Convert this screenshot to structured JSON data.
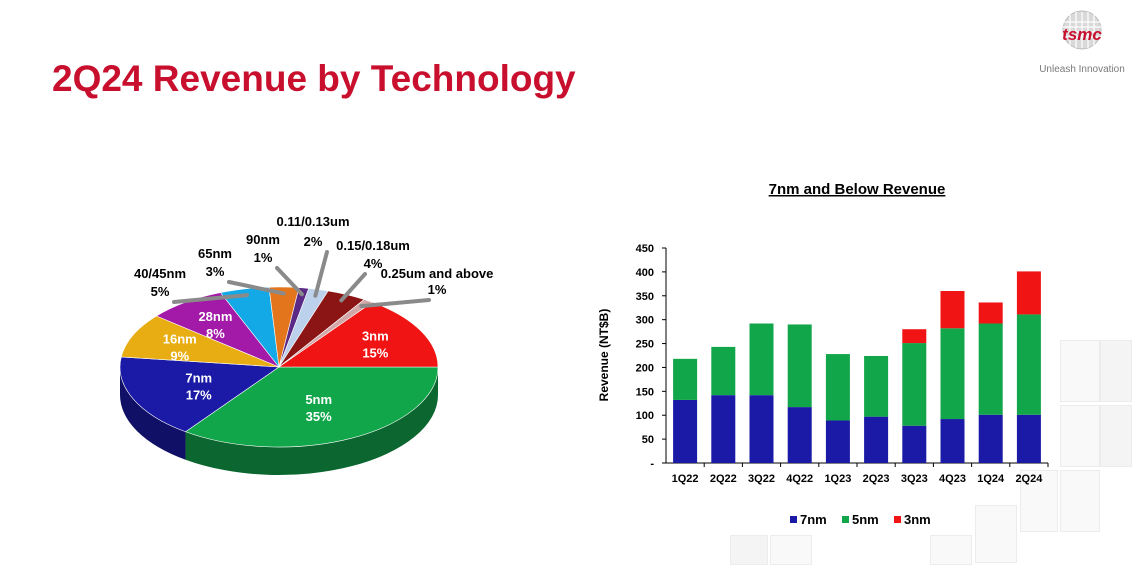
{
  "page": {
    "title": "2Q24 Revenue by Technology",
    "logo_text": "tsmc",
    "tagline": "Unleash Innovation"
  },
  "chart_data": [
    {
      "type": "pie",
      "title": "",
      "slices": [
        {
          "label": "5nm",
          "value": 35,
          "pct": "35%",
          "color": "#12a64b"
        },
        {
          "label": "7nm",
          "value": 17,
          "pct": "17%",
          "color": "#1a1aa6"
        },
        {
          "label": "16nm",
          "value": 9,
          "pct": "9%",
          "color": "#e8ad12"
        },
        {
          "label": "28nm",
          "value": 8,
          "pct": "8%",
          "color": "#a319a8"
        },
        {
          "label": "40/45nm",
          "value": 5,
          "pct": "5%",
          "color": "#13a8e6"
        },
        {
          "label": "65nm",
          "value": 3,
          "pct": "3%",
          "color": "#e3761c"
        },
        {
          "label": "90nm",
          "value": 1,
          "pct": "1%",
          "color": "#5a2a86"
        },
        {
          "label": "0.11/0.13um",
          "value": 2,
          "pct": "2%",
          "color": "#bcd2ec"
        },
        {
          "label": "0.15/0.18um",
          "value": 4,
          "pct": "4%",
          "color": "#8b1414"
        },
        {
          "label": "0.25um and above",
          "value": 1,
          "pct": "1%",
          "color": "#d2a7a7"
        },
        {
          "label": "3nm",
          "value": 15,
          "pct": "15%",
          "color": "#f01414"
        }
      ]
    },
    {
      "type": "bar",
      "stacked": true,
      "title": "7nm and Below Revenue",
      "ylabel": "Revenue (NT$B)",
      "xlabel": "",
      "ylim": [
        0,
        450
      ],
      "yticks": [
        "-",
        "50",
        "100",
        "150",
        "200",
        "250",
        "300",
        "350",
        "400",
        "450"
      ],
      "categories": [
        "1Q22",
        "2Q22",
        "3Q22",
        "4Q22",
        "1Q23",
        "2Q23",
        "3Q23",
        "4Q23",
        "1Q24",
        "2Q24"
      ],
      "series": [
        {
          "name": "7nm",
          "color": "#1a1aa6",
          "values": [
            132,
            142,
            142,
            117,
            89,
            97,
            78,
            92,
            101,
            101
          ]
        },
        {
          "name": "5nm",
          "color": "#12a64b",
          "values": [
            86,
            101,
            150,
            173,
            139,
            127,
            173,
            190,
            191,
            210
          ]
        },
        {
          "name": "3nm",
          "color": "#f01414",
          "values": [
            0,
            0,
            0,
            0,
            0,
            0,
            29,
            78,
            44,
            90
          ]
        }
      ],
      "legend_position": "bottom",
      "grid": false
    }
  ]
}
